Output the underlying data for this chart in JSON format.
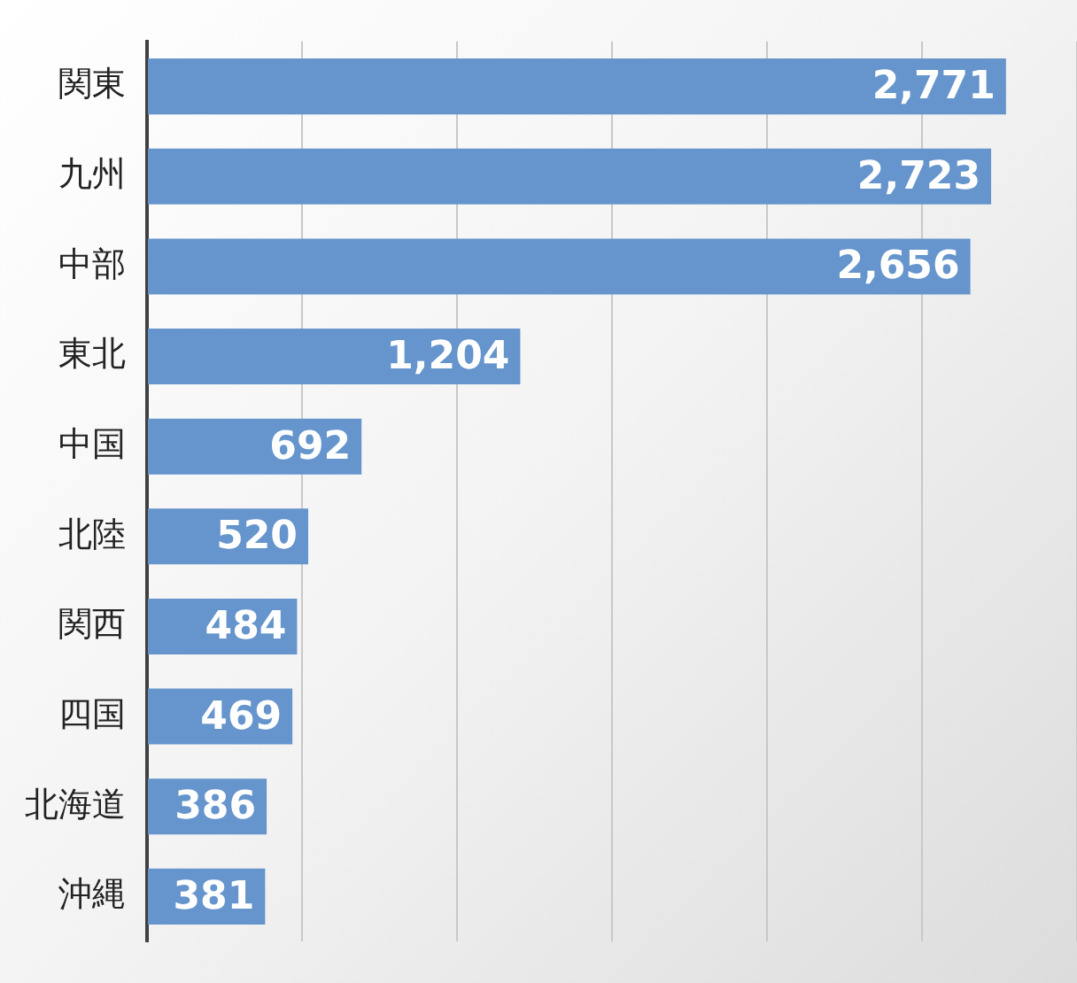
{
  "chart_data": {
    "type": "bar",
    "orientation": "horizontal",
    "categories": [
      "関東",
      "九州",
      "中部",
      "東北",
      "中国",
      "北陸",
      "関西",
      "四国",
      "北海道",
      "沖縄"
    ],
    "values": [
      2771,
      2723,
      2656,
      1204,
      692,
      520,
      484,
      469,
      386,
      381
    ],
    "value_labels": [
      "2,771",
      "2,723",
      "2,656",
      "1,204",
      "692",
      "520",
      "484",
      "469",
      "386",
      "381"
    ],
    "color": "#6595cc",
    "xlim": [
      0,
      3000
    ],
    "xticks": [
      {
        "value": 0,
        "label": null
      },
      {
        "value": 500,
        "label": null
      },
      {
        "value": 1000,
        "label": null
      },
      {
        "value": 1500,
        "label": null
      },
      {
        "value": 2000,
        "label": null
      },
      {
        "value": 2500,
        "label": null
      },
      {
        "value": 3000,
        "label": null
      }
    ],
    "grid": "x",
    "tick_labels": "y",
    "legend": false
  }
}
